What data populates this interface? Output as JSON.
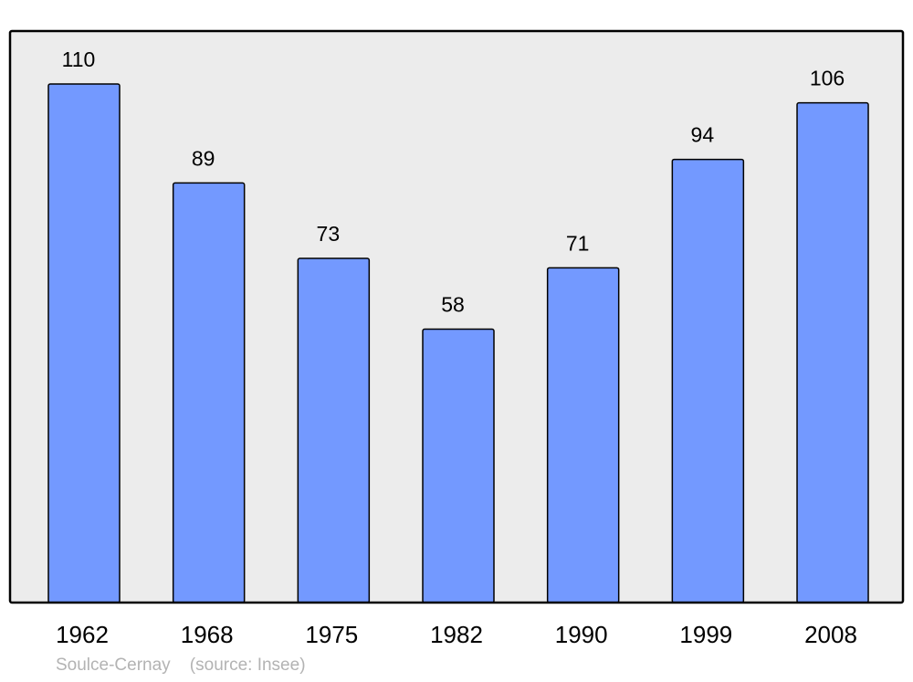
{
  "chart_data": {
    "type": "bar",
    "categories": [
      "1962",
      "1968",
      "1975",
      "1982",
      "1990",
      "1999",
      "2008"
    ],
    "values": [
      110,
      89,
      73,
      58,
      71,
      94,
      106
    ],
    "title": "",
    "xlabel": "",
    "ylabel": "",
    "ylim": [
      0,
      121
    ],
    "grid": false,
    "data_labels": true,
    "colors": {
      "bar": "#7399ff",
      "background": "#ececec",
      "stroke": "#000000"
    }
  },
  "footer": {
    "place": "Soulce-Cernay",
    "source": "(source: Insee)"
  }
}
